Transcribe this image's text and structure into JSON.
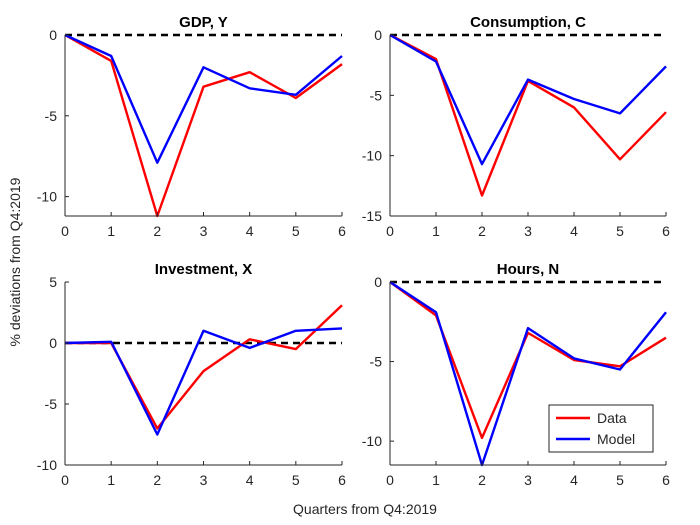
{
  "figure": {
    "ylabel": "% deviations from Q4:2019",
    "xlabel": "Quarters from Q4:2019"
  },
  "chart_data": [
    {
      "type": "line",
      "title": "GDP, Y",
      "x": [
        0,
        1,
        2,
        3,
        4,
        5,
        6
      ],
      "xlim": [
        0,
        6
      ],
      "ylim": [
        -11.2,
        0
      ],
      "xticks": [
        "0",
        "1",
        "2",
        "3",
        "4",
        "5",
        "6"
      ],
      "yticks": [
        0,
        -5,
        -10
      ],
      "ytick_labels": [
        "0",
        "-5",
        "-10"
      ],
      "baseline": 0,
      "series": [
        {
          "name": "Data",
          "color": "#ff0000",
          "values": [
            0,
            -1.6,
            -11.2,
            -3.2,
            -2.3,
            -3.9,
            -1.8
          ]
        },
        {
          "name": "Model",
          "color": "#0000ff",
          "values": [
            0,
            -1.3,
            -7.9,
            -2.0,
            -3.3,
            -3.7,
            -1.3
          ]
        }
      ]
    },
    {
      "type": "line",
      "title": "Consumption, C",
      "x": [
        0,
        1,
        2,
        3,
        4,
        5,
        6
      ],
      "xlim": [
        0,
        6
      ],
      "ylim": [
        -15,
        0
      ],
      "xticks": [
        "0",
        "1",
        "2",
        "3",
        "4",
        "5",
        "6"
      ],
      "yticks": [
        0,
        -5,
        -10,
        -15
      ],
      "ytick_labels": [
        "0",
        "-5",
        "-10",
        "-15"
      ],
      "baseline": 0,
      "series": [
        {
          "name": "Data",
          "color": "#ff0000",
          "values": [
            0,
            -2.0,
            -13.3,
            -3.8,
            -6.0,
            -10.3,
            -6.4
          ]
        },
        {
          "name": "Model",
          "color": "#0000ff",
          "values": [
            0,
            -2.2,
            -10.7,
            -3.7,
            -5.3,
            -6.5,
            -2.6
          ]
        }
      ]
    },
    {
      "type": "line",
      "title": "Investment, X",
      "x": [
        0,
        1,
        2,
        3,
        4,
        5,
        6
      ],
      "xlim": [
        0,
        6
      ],
      "ylim": [
        -10,
        5
      ],
      "xticks": [
        "0",
        "1",
        "2",
        "3",
        "4",
        "5",
        "6"
      ],
      "yticks": [
        5,
        0,
        -5,
        -10
      ],
      "ytick_labels": [
        "5",
        "0",
        "-5",
        "-10"
      ],
      "baseline": 0,
      "series": [
        {
          "name": "Data",
          "color": "#ff0000",
          "values": [
            0,
            0,
            -7.0,
            -2.3,
            0.3,
            -0.5,
            3.1
          ]
        },
        {
          "name": "Model",
          "color": "#0000ff",
          "values": [
            0,
            0.1,
            -7.5,
            1.0,
            -0.4,
            1.0,
            1.2
          ]
        }
      ]
    },
    {
      "type": "line",
      "title": "Hours, N",
      "x": [
        0,
        1,
        2,
        3,
        4,
        5,
        6
      ],
      "xlim": [
        0,
        6
      ],
      "ylim": [
        -11.5,
        0
      ],
      "xticks": [
        "0",
        "1",
        "2",
        "3",
        "4",
        "5",
        "6"
      ],
      "yticks": [
        0,
        -5,
        -10
      ],
      "ytick_labels": [
        "0",
        "-5",
        "-10"
      ],
      "baseline": 0,
      "legend": {
        "position": "bottom-right",
        "entries": [
          "Data",
          "Model"
        ]
      },
      "series": [
        {
          "name": "Data",
          "color": "#ff0000",
          "values": [
            0,
            -2.1,
            -9.8,
            -3.2,
            -4.9,
            -5.3,
            -3.5
          ]
        },
        {
          "name": "Model",
          "color": "#0000ff",
          "values": [
            0,
            -1.9,
            -11.5,
            -2.9,
            -4.8,
            -5.5,
            -1.9
          ]
        }
      ]
    }
  ]
}
